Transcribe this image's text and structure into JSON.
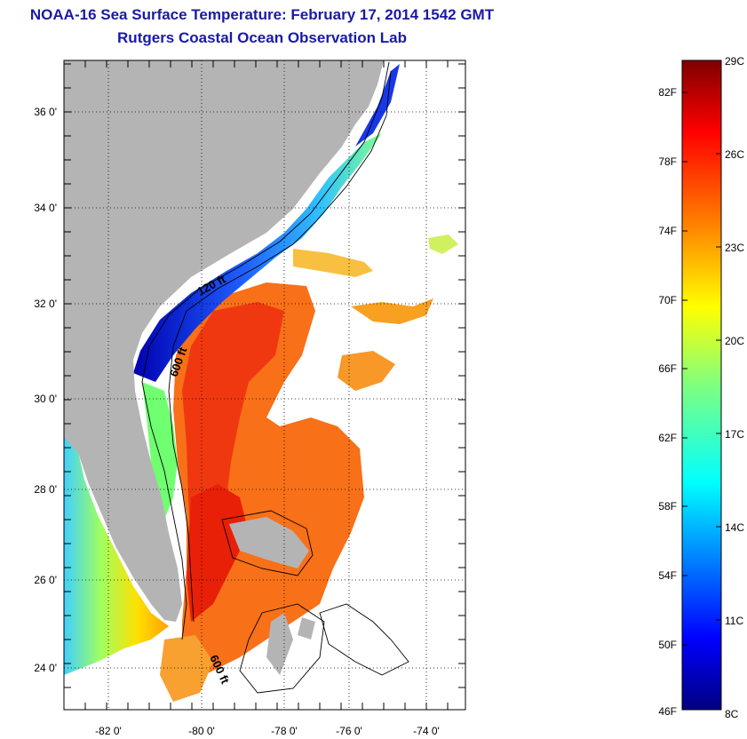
{
  "header": {
    "title": "NOAA-16 Sea Surface Temperature:  February 17, 2014 1542 GMT",
    "subtitle": "Rutgers Coastal Ocean Observation Lab"
  },
  "map": {
    "lat_ticks": [
      "36 0'",
      "34 0'",
      "32 0'",
      "30 0'",
      "28 0'",
      "26 0'",
      "24 0'"
    ],
    "lon_ticks": [
      "-82 0'",
      "-80 0'",
      "-78 0'",
      "-76 0'",
      "-74 0'"
    ],
    "contour_labels": [
      "120 ft",
      "600 ft",
      "600 ft"
    ],
    "colors": {
      "land": "#b4b4b4",
      "cloud": "#ffffff"
    }
  },
  "colorbar": {
    "fahrenheit_labels": [
      "82F",
      "78F",
      "74F",
      "70F",
      "66F",
      "62F",
      "58F",
      "54F",
      "50F",
      "46F"
    ],
    "celsius_labels": [
      "29C",
      "26C",
      "23C",
      "20C",
      "17C",
      "14C",
      "11C",
      "8C"
    ],
    "range_c": [
      8,
      29
    ],
    "colors": [
      "#00007f",
      "#0000ff",
      "#007fff",
      "#00ffff",
      "#7fff7f",
      "#ffff00",
      "#ff7f00",
      "#ff0000",
      "#7f0000"
    ]
  }
}
